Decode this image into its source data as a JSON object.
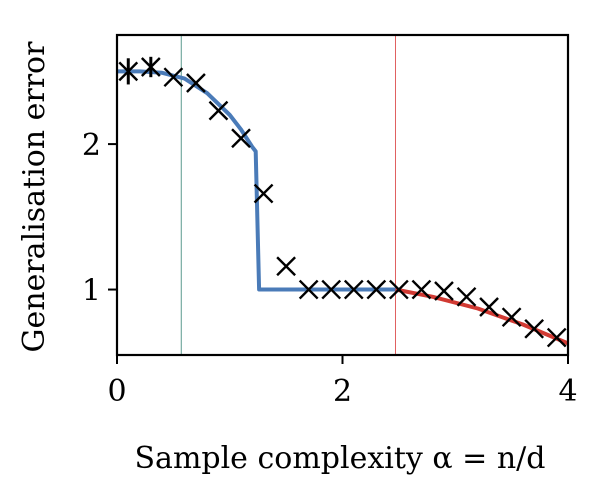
{
  "chart_data": {
    "type": "line",
    "xlabel": "Sample complexity α = n/d",
    "ylabel": "Generalisation error",
    "xlim": [
      0,
      4
    ],
    "ylim": [
      0.55,
      2.75
    ],
    "xticks": [
      0,
      2,
      4
    ],
    "xtick_labels": [
      "0",
      "2",
      "4"
    ],
    "yticks": [
      1,
      2
    ],
    "ytick_labels": [
      "1",
      "2"
    ],
    "grid": false,
    "vlines": [
      {
        "x": 0.57,
        "color": "#5b9a8f"
      },
      {
        "x": 2.47,
        "color": "#e06060"
      }
    ],
    "series": [
      {
        "style": "line",
        "color": "#4a7bb8",
        "x": [
          0.0,
          0.2,
          0.4,
          0.6,
          0.8,
          1.0,
          1.1,
          1.2,
          1.23,
          1.26,
          1.3,
          1.6,
          2.0,
          2.4,
          2.47
        ],
        "y": [
          2.5,
          2.5,
          2.49,
          2.45,
          2.35,
          2.2,
          2.1,
          1.98,
          1.95,
          1.0,
          1.0,
          1.0,
          1.0,
          1.0,
          1.0
        ]
      },
      {
        "style": "line",
        "color": "#d13a33",
        "x": [
          2.47,
          2.8,
          3.2,
          3.6,
          4.0
        ],
        "y": [
          1.0,
          0.95,
          0.87,
          0.76,
          0.63
        ]
      },
      {
        "style": "markers",
        "marker": "x",
        "color": "#000000",
        "x": [
          0.1,
          0.3,
          0.5,
          0.7,
          0.9,
          1.1,
          1.3,
          1.5,
          1.7,
          1.9,
          2.1,
          2.3,
          2.5,
          2.7,
          2.9,
          3.1,
          3.3,
          3.5,
          3.7,
          3.9
        ],
        "y": [
          2.5,
          2.53,
          2.46,
          2.42,
          2.23,
          2.04,
          1.66,
          1.16,
          1.0,
          1.0,
          1.0,
          1.0,
          1.0,
          1.0,
          0.99,
          0.95,
          0.88,
          0.81,
          0.73,
          0.67
        ],
        "err": [
          0.09,
          0.07,
          0.0,
          0.0,
          0.0,
          0.0,
          0.0,
          0.0,
          0.0,
          0.0,
          0.0,
          0.0,
          0.0,
          0.0,
          0.0,
          0.0,
          0.0,
          0.0,
          0.0,
          0.0
        ]
      }
    ]
  }
}
